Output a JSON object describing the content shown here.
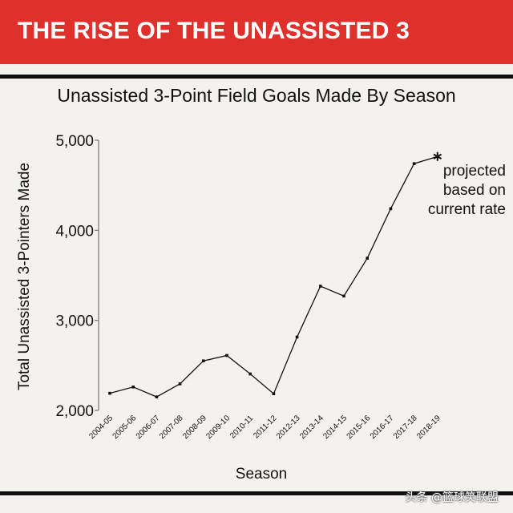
{
  "banner": {
    "title": "THE RISE OF THE UNASSISTED 3"
  },
  "watermark": "头条 @篮球笑联盟",
  "chart_data": {
    "type": "line",
    "title": "Unassisted 3-Point Field Goals Made By Season",
    "xlabel": "Season",
    "ylabel": "Total Unassisted 3-Pointers Made",
    "ylim": [
      2000,
      5000
    ],
    "yticks": [
      2000,
      3000,
      4000,
      5000
    ],
    "ytick_labels": [
      "2,000",
      "3,000",
      "4,000",
      "5,000"
    ],
    "grid": false,
    "categories": [
      "2004-05",
      "2005-06",
      "2006-07",
      "2007-08",
      "2008-09",
      "2009-10",
      "2010-11",
      "2011-12",
      "2012-13",
      "2013-14",
      "2014-15",
      "2015-16",
      "2016-17",
      "2017-18",
      "2018-19"
    ],
    "series": [
      {
        "values": [
          2190,
          2260,
          2150,
          2295,
          2550,
          2610,
          2405,
          2185,
          2815,
          3380,
          3270,
          3690,
          4240,
          4740,
          4820
        ]
      }
    ],
    "projected_index": 14,
    "annotation": [
      "projected",
      "based on",
      "current rate"
    ],
    "line_color": "#111111"
  }
}
